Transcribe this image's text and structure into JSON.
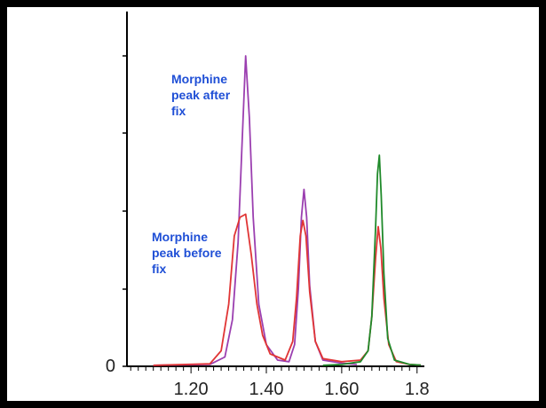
{
  "chart_data": {
    "type": "line",
    "title": "",
    "xlabel": "",
    "ylabel": "",
    "xlim": [
      1.03,
      1.81
    ],
    "ylim": [
      0,
      100
    ],
    "x_ticks": [
      "1.20",
      "1.40",
      "1.60",
      "1.8"
    ],
    "x_tick_values": [
      1.2,
      1.4,
      1.6,
      1.8
    ],
    "y_ticks": [
      "0"
    ],
    "y_tick_values": [
      0
    ],
    "grid": false,
    "legend": "none",
    "series": [
      {
        "color": "#9b3fb0",
        "points": [
          [
            1.1,
            0.3
          ],
          [
            1.25,
            0.6
          ],
          [
            1.29,
            3
          ],
          [
            1.31,
            15
          ],
          [
            1.325,
            40
          ],
          [
            1.335,
            70
          ],
          [
            1.345,
            100
          ],
          [
            1.355,
            80
          ],
          [
            1.365,
            48
          ],
          [
            1.38,
            20
          ],
          [
            1.4,
            7
          ],
          [
            1.43,
            2
          ],
          [
            1.46,
            1.5
          ],
          [
            1.475,
            7
          ],
          [
            1.485,
            25
          ],
          [
            1.493,
            48
          ],
          [
            1.5,
            57
          ],
          [
            1.507,
            48
          ],
          [
            1.515,
            26
          ],
          [
            1.53,
            8
          ],
          [
            1.55,
            2
          ],
          [
            1.6,
            1
          ],
          [
            1.64,
            0.6
          ]
        ]
      },
      {
        "color": "#e03535",
        "points": [
          [
            1.1,
            0.3
          ],
          [
            1.25,
            0.8
          ],
          [
            1.28,
            5
          ],
          [
            1.3,
            20
          ],
          [
            1.315,
            42
          ],
          [
            1.33,
            48
          ],
          [
            1.345,
            49
          ],
          [
            1.36,
            36
          ],
          [
            1.375,
            20
          ],
          [
            1.39,
            10
          ],
          [
            1.41,
            4
          ],
          [
            1.45,
            2
          ],
          [
            1.47,
            8
          ],
          [
            1.48,
            22
          ],
          [
            1.49,
            42
          ],
          [
            1.497,
            47
          ],
          [
            1.505,
            42
          ],
          [
            1.515,
            24
          ],
          [
            1.53,
            8
          ],
          [
            1.55,
            2.5
          ],
          [
            1.6,
            1.5
          ],
          [
            1.65,
            2
          ],
          [
            1.67,
            5
          ],
          [
            1.68,
            16
          ],
          [
            1.69,
            35
          ],
          [
            1.697,
            45
          ],
          [
            1.704,
            38
          ],
          [
            1.712,
            22
          ],
          [
            1.725,
            7
          ],
          [
            1.745,
            1.5
          ],
          [
            1.78,
            0.6
          ],
          [
            1.81,
            0.4
          ]
        ]
      },
      {
        "color": "#1f8a2a",
        "points": [
          [
            1.55,
            0.3
          ],
          [
            1.6,
            0.6
          ],
          [
            1.65,
            1.5
          ],
          [
            1.67,
            5
          ],
          [
            1.68,
            16
          ],
          [
            1.69,
            45
          ],
          [
            1.695,
            62
          ],
          [
            1.7,
            68
          ],
          [
            1.705,
            55
          ],
          [
            1.712,
            30
          ],
          [
            1.722,
            9
          ],
          [
            1.74,
            2
          ],
          [
            1.78,
            0.6
          ],
          [
            1.81,
            0.4
          ]
        ]
      }
    ],
    "annotations": [
      {
        "lines": [
          "Morphine",
          "peak after",
          "fix"
        ]
      },
      {
        "lines": [
          "Morphine",
          "peak before",
          "fix"
        ]
      }
    ]
  }
}
